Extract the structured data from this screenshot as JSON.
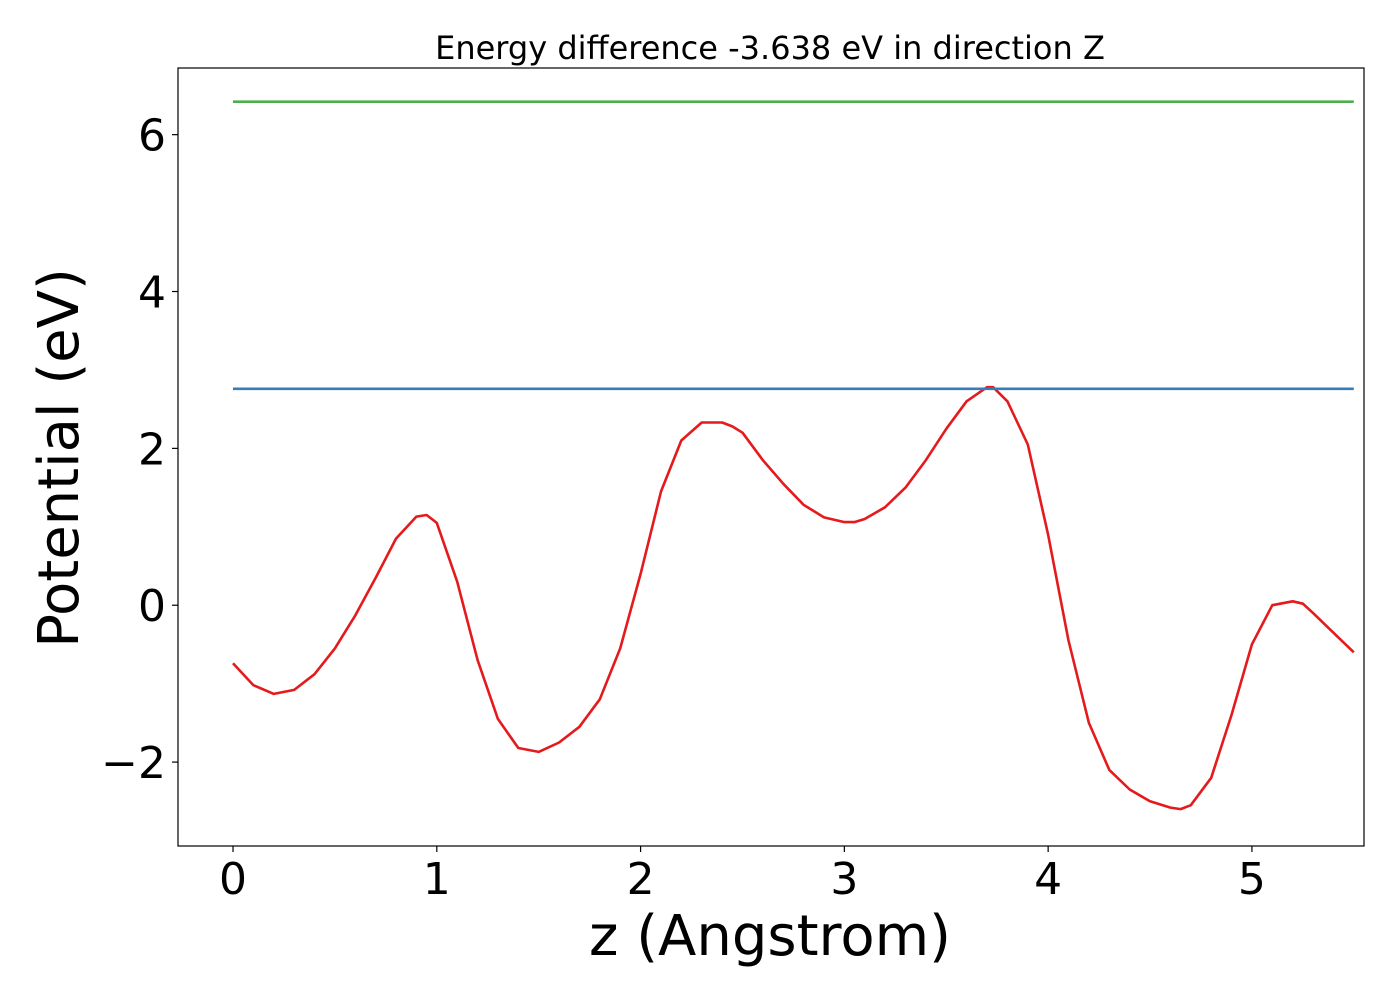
{
  "chart_data": {
    "type": "line",
    "title": "Energy difference -3.638 eV in direction Z",
    "xlabel": "z (Angstrom)",
    "ylabel": "Potential (eV)",
    "xlim": [
      -0.27,
      5.55
    ],
    "ylim": [
      -3.07,
      6.85
    ],
    "grid": false,
    "x_ticks": [
      0,
      1,
      2,
      3,
      4,
      5
    ],
    "x_tick_labels": [
      "0",
      "1",
      "2",
      "3",
      "4",
      "5"
    ],
    "y_ticks": [
      -2,
      0,
      2,
      4,
      6
    ],
    "y_tick_labels": [
      "−2",
      "0",
      "2",
      "4",
      "6"
    ],
    "series": [
      {
        "color": "#e41a1c",
        "x": [
          0,
          0.1,
          0.2,
          0.3,
          0.4,
          0.5,
          0.6,
          0.7,
          0.8,
          0.9,
          0.95,
          1.0,
          1.1,
          1.2,
          1.3,
          1.4,
          1.5,
          1.6,
          1.7,
          1.8,
          1.9,
          2.0,
          2.1,
          2.2,
          2.3,
          2.4,
          2.45,
          2.5,
          2.6,
          2.7,
          2.8,
          2.9,
          3.0,
          3.05,
          3.1,
          3.2,
          3.3,
          3.4,
          3.5,
          3.6,
          3.7,
          3.73,
          3.8,
          3.9,
          4.0,
          4.1,
          4.2,
          4.3,
          4.4,
          4.5,
          4.6,
          4.65,
          4.7,
          4.8,
          4.9,
          5.0,
          5.1,
          5.2,
          5.25,
          5.3,
          5.4,
          5.5
        ],
        "y": [
          -0.74,
          -1.02,
          -1.13,
          -1.08,
          -0.88,
          -0.55,
          -0.13,
          0.35,
          0.85,
          1.13,
          1.15,
          1.05,
          0.3,
          -0.7,
          -1.45,
          -1.82,
          -1.87,
          -1.75,
          -1.55,
          -1.2,
          -0.55,
          0.4,
          1.45,
          2.1,
          2.33,
          2.33,
          2.28,
          2.2,
          1.85,
          1.55,
          1.28,
          1.12,
          1.06,
          1.06,
          1.1,
          1.25,
          1.5,
          1.85,
          2.25,
          2.6,
          2.78,
          2.78,
          2.6,
          2.05,
          0.9,
          -0.45,
          -1.5,
          -2.1,
          -2.35,
          -2.5,
          -2.58,
          -2.6,
          -2.55,
          -2.2,
          -1.4,
          -0.5,
          0.0,
          0.05,
          0.02,
          -0.1,
          -0.35,
          -0.6
        ]
      },
      {
        "color": "#377eb8",
        "x": [
          0,
          5.5
        ],
        "y": [
          2.76,
          2.76
        ]
      },
      {
        "color": "#4daf4a",
        "x": [
          0,
          5.5
        ],
        "y": [
          6.42,
          6.42
        ]
      }
    ]
  }
}
